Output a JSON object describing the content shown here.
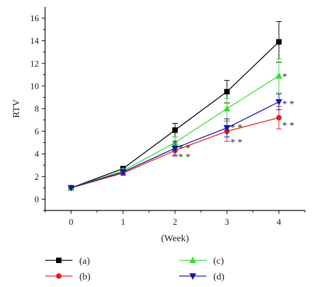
{
  "chart_data": {
    "type": "line",
    "xlabel": "(Week)",
    "ylabel": "RTV",
    "xlim": [
      -0.5,
      4.5
    ],
    "ylim": [
      -1,
      17
    ],
    "x_ticks": [
      0,
      1,
      2,
      3,
      4
    ],
    "y_ticks": [
      0,
      2,
      4,
      6,
      8,
      10,
      12,
      14,
      16
    ],
    "x": [
      0,
      1,
      2,
      3,
      4
    ],
    "grid": false,
    "legend_position": "bottom",
    "series": [
      {
        "name": "(a)",
        "color": "#000000",
        "marker": "square",
        "values": [
          1.0,
          2.7,
          6.1,
          9.5,
          13.9
        ],
        "errors": [
          0.05,
          0.2,
          0.6,
          1.0,
          1.8
        ]
      },
      {
        "name": "(b)",
        "color": "#e02020",
        "marker": "circle",
        "values": [
          1.0,
          2.3,
          4.3,
          6.0,
          7.2
        ],
        "errors": [
          0.05,
          0.2,
          0.5,
          0.9,
          1.0
        ]
      },
      {
        "name": "(c)",
        "color": "#33dd33",
        "marker": "triangle-up",
        "values": [
          1.0,
          2.5,
          5.0,
          8.0,
          10.9
        ],
        "errors": [
          0.05,
          0.2,
          0.5,
          0.9,
          1.5
        ]
      },
      {
        "name": "(d)",
        "color": "#1515aa",
        "marker": "triangle-down",
        "values": [
          1.0,
          2.4,
          4.5,
          6.3,
          8.6
        ],
        "errors": [
          0.05,
          0.2,
          0.6,
          0.8,
          0.7
        ]
      }
    ],
    "annotations": [
      {
        "text": "* *",
        "x": 2,
        "y": 4.8
      },
      {
        "text": "* *",
        "x": 2,
        "y": 4.0
      },
      {
        "text": "* *",
        "x": 3,
        "y": 6.6
      },
      {
        "text": "* *",
        "x": 3,
        "y": 5.3
      },
      {
        "text": "*",
        "x": 4,
        "y": 11.1
      },
      {
        "text": "* *",
        "x": 4,
        "y": 8.7
      },
      {
        "text": "* *",
        "x": 4,
        "y": 6.8
      }
    ]
  }
}
